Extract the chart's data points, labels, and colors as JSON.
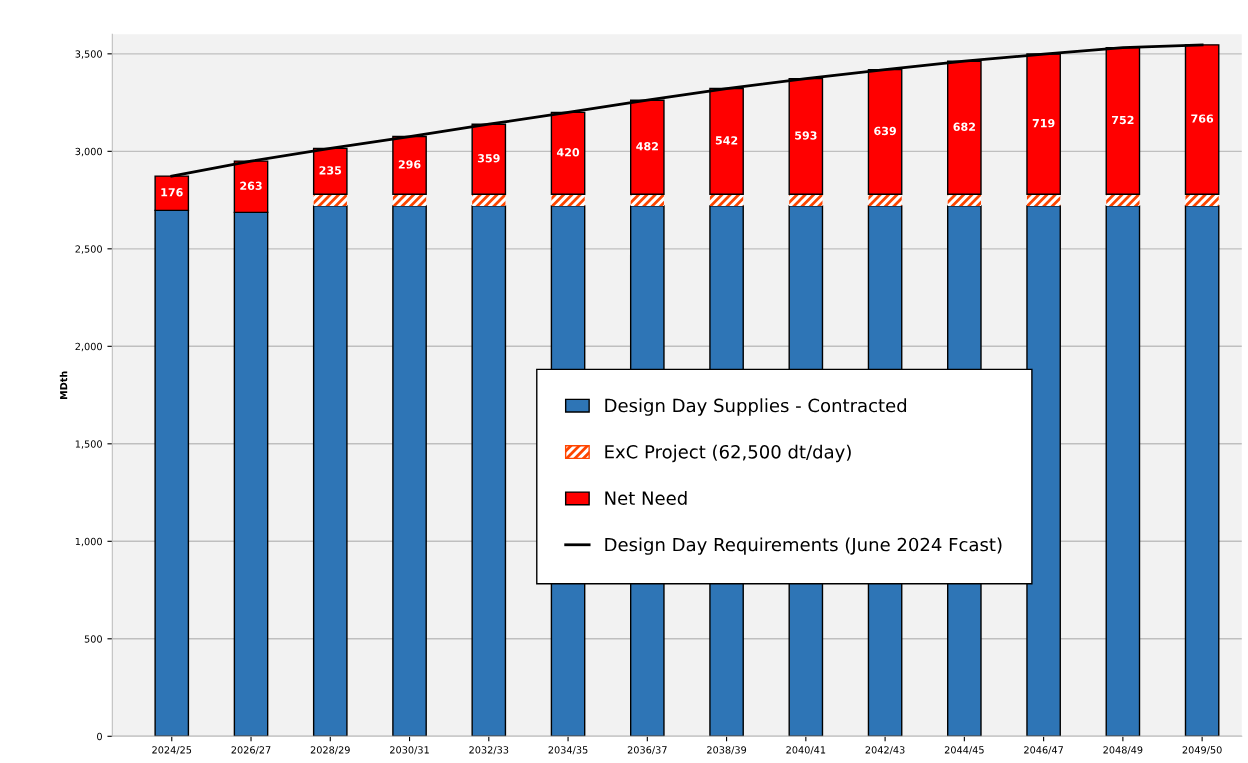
{
  "chart_data": {
    "type": "bar",
    "stacked": true,
    "ylabel": "MDth",
    "categories": [
      "2024/25",
      "2026/27",
      "2028/29",
      "2030/31",
      "2032/33",
      "2034/35",
      "2036/37",
      "2038/39",
      "2040/41",
      "2042/43",
      "2044/45",
      "2046/47",
      "2048/49",
      "2049/50"
    ],
    "series": [
      {
        "name": "Design Day Supplies - Contracted",
        "color": "#2e75b6",
        "values": [
          2697,
          2687,
          2720,
          2720,
          2720,
          2720,
          2720,
          2720,
          2720,
          2720,
          2720,
          2720,
          2720,
          2720
        ]
      },
      {
        "name": "ExC Project (62,500 dt/day)",
        "color": "#ff4500",
        "values": [
          null,
          null,
          60,
          60,
          60,
          60,
          60,
          60,
          60,
          60,
          60,
          60,
          60,
          60
        ]
      },
      {
        "name": "Net Need",
        "color": "#ff0000",
        "values": [
          176,
          263,
          235,
          296,
          359,
          420,
          482,
          542,
          593,
          639,
          682,
          719,
          752,
          766
        ],
        "value_labels": [
          "176",
          "263",
          "235",
          "296",
          "359",
          "420",
          "482",
          "542",
          "593",
          "639",
          "682",
          "719",
          "752",
          "766"
        ]
      },
      {
        "name": "Design Day Requirements (June 2024 Fcast)",
        "type": "line",
        "color": "#000000",
        "values": [
          2873,
          2950,
          3015,
          3076,
          3139,
          3200,
          3262,
          3322,
          3373,
          3419,
          3462,
          3499,
          3532,
          3546
        ]
      }
    ],
    "ylim": [
      0,
      3600
    ],
    "yticks": [
      {
        "value": 0,
        "label": "0"
      },
      {
        "value": 500,
        "label": "500"
      },
      {
        "value": 1000,
        "label": "1,000"
      },
      {
        "value": 1500,
        "label": "1,500"
      },
      {
        "value": 2000,
        "label": "2,000"
      },
      {
        "value": 2500,
        "label": "2,500"
      },
      {
        "value": 3000,
        "label": "3,000"
      },
      {
        "value": 3500,
        "label": "3,500"
      }
    ],
    "grid": "y",
    "legend": "center",
    "marker": "none",
    "line_style": "solid"
  }
}
